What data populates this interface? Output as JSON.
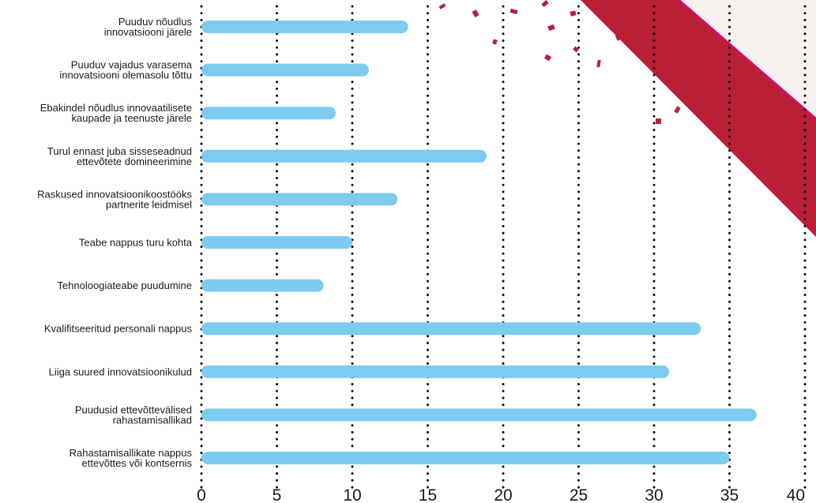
{
  "chart_data": {
    "type": "bar",
    "orientation": "horizontal",
    "title": "",
    "xlabel": "",
    "ylabel": "",
    "categories": [
      [
        "Puuduv nõudlus",
        "innovatsiooni järele"
      ],
      [
        "Puuduv vajadus varasema",
        "innovatsiooni olemasolu tõttu"
      ],
      [
        "Ebakindel nõudlus innovaatilisete",
        "kaupade ja teenuste järele"
      ],
      [
        "Turul ennast juba sisseseadnud",
        "ettevõtete domineerimine"
      ],
      [
        "Raskused innovatsioonikoostööks",
        "partnerite leidmisel"
      ],
      [
        "Teabe nappus turu kohta"
      ],
      [
        "Tehnoloogiateabe puudumine"
      ],
      [
        "Kvalifitseeritud personali nappus"
      ],
      [
        "Liiga suured innovatsioonikulud"
      ],
      [
        "Puudusid ettevõttevälised",
        "rahastamisallikad"
      ],
      [
        "Rahastamisallikate nappus",
        "ettevõttes või kontsernis"
      ]
    ],
    "values": [
      13.7,
      11.1,
      8.9,
      18.9,
      13.0,
      10.0,
      8.1,
      33.1,
      31.0,
      36.8,
      35.0
    ],
    "xlim": [
      0,
      40
    ],
    "xticks": [
      0,
      5,
      10,
      15,
      20,
      25,
      30,
      35,
      40
    ],
    "grid": "vertical-dotted",
    "legend": "none",
    "colors": {
      "bar": "#7dcbef",
      "grid": "#111111",
      "ribbon": "#b91f35",
      "ribbon_edge": "#e6007e",
      "corner_bg": "#f7f1ef"
    }
  }
}
